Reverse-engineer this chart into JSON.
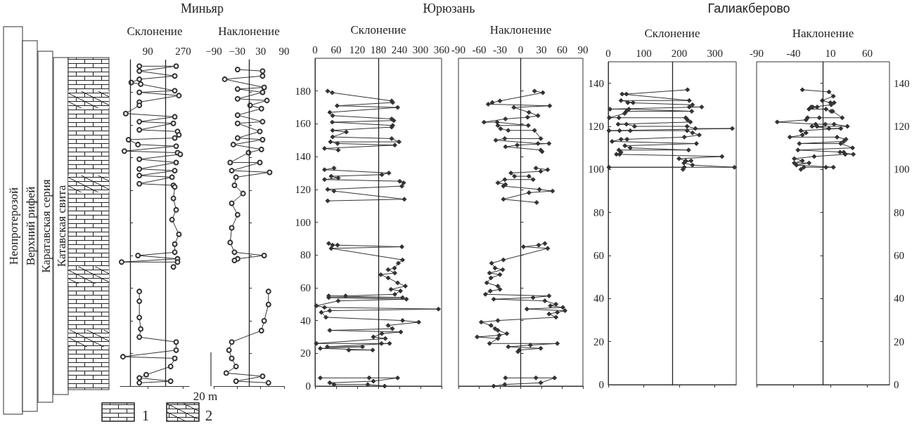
{
  "chart_data": [
    {
      "type": "line",
      "title": "Миньяр",
      "xlabel": "Склонение",
      "color": "#333333",
      "marker": "circle",
      "grid": false,
      "tick_labels": "x",
      "xlim": [
        -50,
        300
      ],
      "xticks": [
        90,
        270
      ],
      "ylim": [
        0,
        200
      ],
      "yticks": [
        {
          "value": 0,
          "label": null
        },
        {
          "value": 20,
          "label": null
        },
        {
          "value": 40,
          "label": null
        },
        {
          "value": 60,
          "label": null
        },
        {
          "value": 80,
          "label": null
        },
        {
          "value": 100,
          "label": null
        },
        {
          "value": 120,
          "label": null
        },
        {
          "value": 140,
          "label": null
        },
        {
          "value": 160,
          "label": null
        },
        {
          "value": 180,
          "label": null
        }
      ],
      "ref_lines": [
        {
          "axis": "x",
          "value": 0
        },
        {
          "axis": "x",
          "value": 180
        }
      ],
      "annotations": [
        "Неопротерозой",
        "Верхний рифей",
        "Каратавская серия",
        "Катавская свита",
        "20 m",
        "1",
        "2"
      ],
      "x": [
        47,
        234,
        47,
        227,
        47,
        6,
        54,
        227,
        47,
        248,
        47,
        47,
        -22,
        227,
        47,
        220,
        47,
        241,
        248,
        227,
        -8,
        40,
        234,
        -29,
        241,
        255,
        47,
        234,
        47,
        227,
        47,
        213,
        47,
        220,
        227,
        220,
        234,
        213,
        248,
        227,
        227,
        40,
        241,
        -43,
        241,
        220,
        null,
        47,
        47,
        47,
        54,
        47,
        234,
        234,
        -36,
        227,
        206,
        82,
        47,
        206,
        47
      ],
      "values": [
        196,
        196,
        193,
        190,
        188,
        186,
        185,
        181,
        180,
        178,
        174,
        172,
        167,
        165,
        162,
        161,
        157,
        156,
        154,
        152,
        151,
        148,
        147,
        144,
        143,
        142,
        139,
        137,
        133,
        132,
        129,
        128,
        124,
        123,
        122,
        115,
        108,
        102,
        93,
        87,
        82,
        80,
        78,
        76,
        76,
        73,
        null,
        58,
        52,
        42,
        35,
        30,
        27,
        22,
        18,
        17,
        12,
        7,
        5,
        3,
        2
      ]
    },
    {
      "type": "line",
      "xlabel": "Наклонение",
      "color": "#333333",
      "marker": "circle",
      "grid": false,
      "tick_labels": "x",
      "xlim": [
        -90,
        90
      ],
      "xticks": [
        {
          "value": -90,
          "label": "−90"
        },
        {
          "value": -30,
          "label": "−30"
        },
        30,
        90
      ],
      "ylim": [
        0,
        200
      ],
      "yticks": [
        {
          "value": 0,
          "label": null
        },
        {
          "value": 20,
          "label": null
        },
        {
          "value": 40,
          "label": null
        },
        {
          "value": 60,
          "label": null
        },
        {
          "value": 80,
          "label": null
        },
        {
          "value": 100,
          "label": null
        },
        {
          "value": 120,
          "label": null
        },
        {
          "value": 140,
          "label": null
        },
        {
          "value": 160,
          "label": null
        },
        {
          "value": 180,
          "label": null
        }
      ],
      "ref_lines": [
        {
          "axis": "x",
          "value": 0
        }
      ],
      "x": [
        -29,
        35,
        35,
        -62,
        39,
        -29,
        35,
        -29,
        46,
        3,
        32,
        -29,
        35,
        -29,
        28,
        -29,
        35,
        -40,
        32,
        -1,
        -48,
        28,
        -44,
        53,
        -33,
        -37,
        -15,
        -44,
        -29,
        -44,
        -48,
        -37,
        39,
        -29,
        -37,
        null,
        50,
        50,
        39,
        32,
        -44,
        -51,
        -44,
        -33,
        -58,
        35,
        -33,
        50
      ],
      "values": [
        194,
        193,
        190,
        188,
        183,
        182,
        180,
        176,
        175,
        172,
        170,
        166,
        162,
        161,
        156,
        152,
        151,
        148,
        145,
        143,
        137,
        137,
        132,
        131,
        128,
        123,
        118,
        112,
        105,
        97,
        88,
        82,
        80,
        78,
        77,
        null,
        58,
        50,
        40,
        34,
        27,
        22,
        17,
        12,
        8,
        6,
        3,
        2
      ]
    },
    {
      "type": "line",
      "title": "Юрюзань",
      "xlabel": "Склонение",
      "color": "#333333",
      "marker": "diamond",
      "grid": false,
      "xlim": [
        0,
        360
      ],
      "xticks": [
        0,
        60,
        120,
        180,
        240,
        300,
        360
      ],
      "ylim": [
        0,
        200
      ],
      "yticks": [
        0,
        20,
        40,
        60,
        80,
        100,
        120,
        140,
        160,
        180
      ],
      "ref_lines": [
        {
          "axis": "x",
          "value": 180
        }
      ],
      "x": [
        36,
        49,
        218,
        221,
        63,
        235,
        42,
        50,
        218,
        224,
        49,
        221,
        218,
        50,
        89,
        50,
        218,
        239,
        44,
        64,
        227,
        27,
        66,
        null,
        54,
        27,
        210,
        190,
        46,
        66,
        27,
        241,
        252,
        247,
        36,
        54,
        254,
        36,
        null,
        39,
        50,
        64,
        247,
        46,
        249,
        237,
        226,
        208,
        227,
        187,
        208,
        235,
        257,
        216,
        243,
        227,
        87,
        39,
        249,
        39,
        260,
        66,
        4,
        27,
        351,
        42,
        18,
        31,
        249,
        295,
        208,
        220,
        42,
        244,
        190,
        166,
        200,
        4,
        189,
        212,
        35,
        135,
        15,
        164,
        96,
        null,
        15,
        154,
        235,
        166,
        42,
        54,
        150,
        198
      ],
      "values": [
        180,
        179,
        174,
        173,
        171,
        170,
        167,
        165,
        163,
        162,
        161,
        159,
        158,
        156,
        155,
        152,
        151,
        149,
        149,
        148,
        147,
        145,
        144,
        null,
        133,
        132,
        130,
        129,
        128,
        127,
        126,
        125,
        124,
        122,
        120,
        119,
        114,
        113,
        null,
        87,
        86,
        86,
        85,
        84,
        77,
        75,
        72,
        71,
        69,
        68,
        66,
        63,
        61,
        59,
        58,
        56,
        55,
        55,
        54,
        54,
        53,
        52,
        49,
        48,
        47,
        46,
        45,
        42,
        40,
        39,
        37,
        35,
        34,
        33,
        32,
        30,
        29,
        26,
        26,
        26,
        24,
        24,
        23,
        22,
        22,
        null,
        5,
        5,
        5,
        3,
        2,
        1,
        1,
        0
      ]
    },
    {
      "type": "line",
      "xlabel": "Наклонение",
      "color": "#333333",
      "marker": "diamond",
      "grid": false,
      "tick_labels": "x",
      "xlim": [
        -90,
        90
      ],
      "xticks": [
        -90,
        -60,
        -30,
        0,
        30,
        60,
        90
      ],
      "ylim": [
        0,
        200
      ],
      "yticks": [
        0,
        20,
        40,
        60,
        80,
        100,
        120,
        140,
        160,
        180
      ],
      "ref_lines": [
        {
          "axis": "x",
          "value": 0
        }
      ],
      "x": [
        20,
        32,
        -30,
        -41,
        -47,
        42,
        -10,
        12,
        25,
        10,
        -22,
        -53,
        -34,
        11,
        -33,
        -29,
        -18,
        20,
        29,
        -23,
        -36,
        25,
        41,
        -5,
        -22,
        29,
        31,
        null,
        22,
        39,
        29,
        -14,
        -9,
        12,
        18,
        -23,
        -33,
        -22,
        -25,
        27,
        46,
        12,
        -25,
        23,
        null,
        35,
        26,
        4,
        39,
        -25,
        -42,
        -37,
        -26,
        -45,
        -30,
        -43,
        -49,
        -33,
        -30,
        -44,
        -51,
        41,
        18,
        -39,
        35,
        51,
        43,
        61,
        9,
        64,
        53,
        41,
        51,
        -33,
        -57,
        -43,
        -37,
        -33,
        -20,
        -31,
        -63,
        -33,
        -45,
        53,
        14,
        -18,
        29,
        -2,
        -4,
        null,
        -22,
        22,
        49,
        29,
        -23,
        -39
      ],
      "values": [
        180,
        179,
        174,
        173,
        172,
        171,
        170,
        167,
        165,
        164,
        163,
        161,
        161,
        159,
        159,
        157,
        156,
        156,
        151,
        151,
        150,
        148,
        148,
        147,
        146,
        144,
        143,
        null,
        133,
        132,
        131,
        130,
        128,
        128,
        126,
        126,
        124,
        123,
        122,
        120,
        119,
        118,
        114,
        112,
        null,
        87,
        86,
        85,
        84,
        77,
        75,
        72,
        71,
        69,
        68,
        66,
        63,
        61,
        59,
        58,
        56,
        55,
        54,
        53,
        52,
        50,
        49,
        48,
        47,
        46,
        45,
        44,
        42,
        40,
        39,
        37,
        35,
        34,
        32,
        31,
        30,
        29,
        26,
        26,
        25,
        24,
        23,
        22,
        21,
        null,
        5,
        5,
        5,
        2,
        1,
        0
      ]
    },
    {
      "type": "line",
      "title": "Галиакберово",
      "xlabel": "Склонение",
      "color": "#333333",
      "marker": "diamond",
      "grid": false,
      "xlim": [
        0,
        360
      ],
      "xticks": [
        0,
        100,
        200,
        300
      ],
      "ylim": [
        0,
        150
      ],
      "yticks": [
        0,
        20,
        40,
        60,
        80,
        100,
        120,
        140
      ],
      "ref_lines": [
        {
          "axis": "x",
          "value": 180
        }
      ],
      "x": [
        223,
        51,
        39,
        228,
        36,
        70,
        55,
        237,
        228,
        263,
        5,
        58,
        235,
        51,
        46,
        3,
        30,
        218,
        223,
        231,
        28,
        51,
        74,
        222,
        245,
        349,
        2,
        32,
        62,
        222,
        237,
        256,
        214,
        53,
        36,
        11,
        248,
        47,
        62,
        226,
        30,
        36,
        23,
        32,
        320,
        199,
        218,
        233,
        213,
        237,
        355,
        2,
        214,
        210
      ],
      "values": [
        137,
        135,
        135,
        132,
        132,
        131,
        131,
        130,
        129,
        129,
        128,
        128,
        127,
        127,
        126,
        124,
        124,
        124,
        123,
        122,
        121,
        121,
        120,
        120,
        119,
        119,
        118,
        118,
        118,
        118,
        117,
        116,
        115,
        114,
        114,
        113,
        112,
        111,
        110,
        109,
        109,
        108,
        107,
        107,
        106,
        105,
        104,
        104,
        103,
        102,
        101,
        101,
        101,
        100
      ]
    },
    {
      "type": "line",
      "xlabel": "Наклонение",
      "color": "#333333",
      "marker": "diamond",
      "grid": false,
      "xlim": [
        -90,
        90
      ],
      "xticks": [
        -90,
        -40,
        10,
        60
      ],
      "ylim": [
        0,
        150
      ],
      "yticks": [
        0,
        20,
        40,
        60,
        80,
        100,
        120,
        140
      ],
      "ref_lines": [
        {
          "axis": "x",
          "value": 0
        }
      ],
      "x": [
        -28,
        8,
        14,
        -1,
        10,
        15,
        11,
        -14,
        -16,
        -8,
        -19,
        4,
        11,
        13,
        26,
        -5,
        -21,
        -23,
        -62,
        -10,
        3,
        15,
        33,
        -8,
        -15,
        8,
        24,
        -30,
        -23,
        -28,
        -45,
        19,
        31,
        28,
        -32,
        24,
        40,
        -34,
        28,
        23,
        41,
        30,
        -12,
        -39,
        -28,
        -39,
        -19,
        -36,
        14,
        4,
        -26,
        -30
      ],
      "values": [
        137,
        136,
        134,
        132,
        131,
        131,
        130,
        129,
        129,
        129,
        128,
        128,
        127,
        127,
        124,
        124,
        124,
        123,
        122,
        121,
        121,
        121,
        120,
        120,
        120,
        119,
        119,
        118,
        117,
        116,
        115,
        115,
        114,
        113,
        112,
        112,
        110,
        109,
        108,
        108,
        107,
        107,
        106,
        105,
        104,
        103,
        103,
        102,
        101,
        101,
        101,
        100
      ]
    }
  ]
}
